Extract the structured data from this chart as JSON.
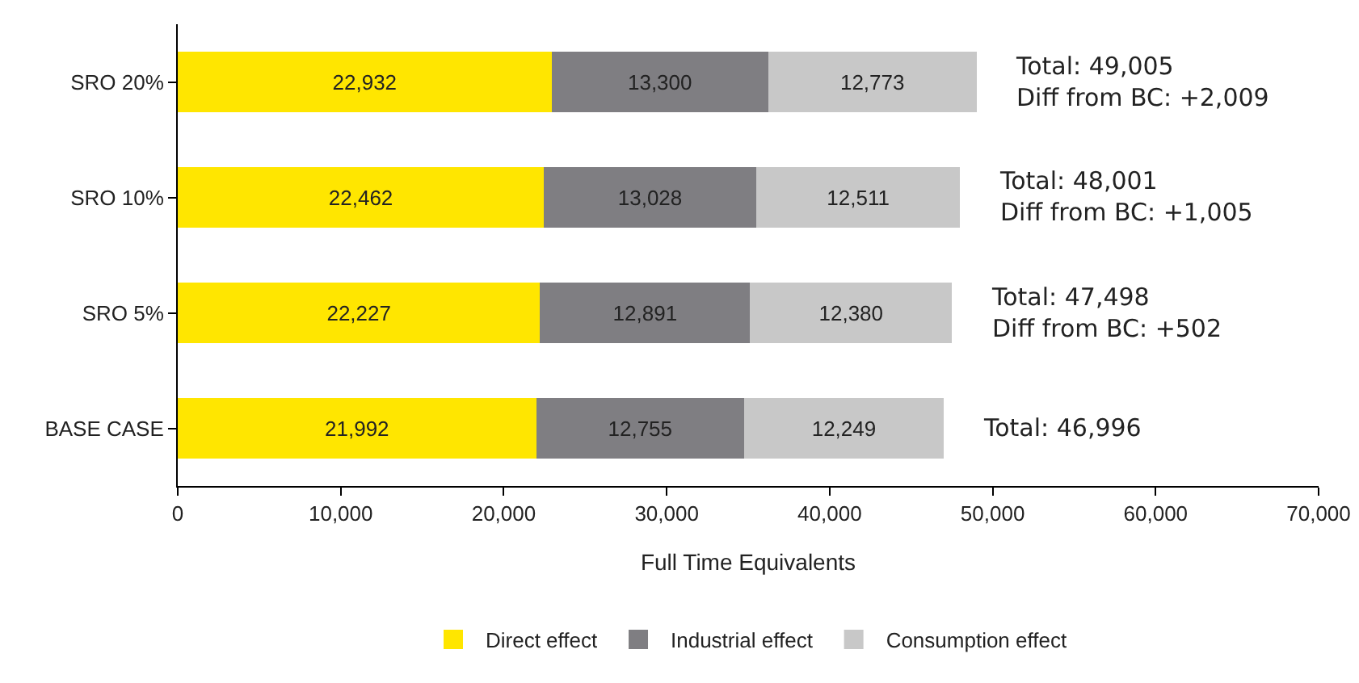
{
  "chart_data": {
    "type": "bar",
    "orientation": "horizontal",
    "stacked": true,
    "grid": false,
    "legend": "bottom",
    "xlabel": "Full Time Equivalents",
    "categories": [
      "SRO 20%",
      "SRO 10%",
      "SRO 5%",
      "BASE CASE"
    ],
    "series": [
      {
        "name": "Direct effect",
        "color": "#ffe600",
        "values": [
          22932,
          22462,
          22227,
          21992
        ],
        "value_labels": [
          "22,932",
          "22,462",
          "22,227",
          "21,992"
        ]
      },
      {
        "name": "Industrial effect",
        "color": "#7f7e82",
        "values": [
          13300,
          13028,
          12891,
          12755
        ],
        "value_labels": [
          "13,300",
          "13,028",
          "12,891",
          "12,755"
        ]
      },
      {
        "name": "Consumption effect",
        "color": "#c8c8c8",
        "values": [
          12773,
          12511,
          12380,
          12249
        ],
        "value_labels": [
          "12,773",
          "12,511",
          "12,380",
          "12,249"
        ]
      }
    ],
    "xlim": [
      0,
      70000
    ],
    "xticks": [
      0,
      {
        "value": 10000,
        "label": "10,000"
      },
      {
        "value": 20000,
        "label": "20,000"
      },
      {
        "value": 30000,
        "label": "30,000"
      },
      {
        "value": 40000,
        "label": "40,000"
      },
      {
        "value": 50000,
        "label": "50,000"
      },
      {
        "value": 60000,
        "label": "60,000"
      },
      {
        "value": 70000,
        "label": "70,000"
      }
    ],
    "annotations": [
      {
        "text": "Total: 49,005\nDiff from BC: +2,009",
        "x": 49005,
        "y": "SRO 20%"
      },
      {
        "text": "Total: 48,001\nDiff from BC: +1,005",
        "x": 48001,
        "y": "SRO 10%"
      },
      {
        "text": "Total: 47,498\nDiff from BC: +502",
        "x": 47498,
        "y": "SRO 5%"
      },
      {
        "text": "Total: 46,996",
        "x": 46996,
        "y": "BASE CASE"
      }
    ]
  }
}
